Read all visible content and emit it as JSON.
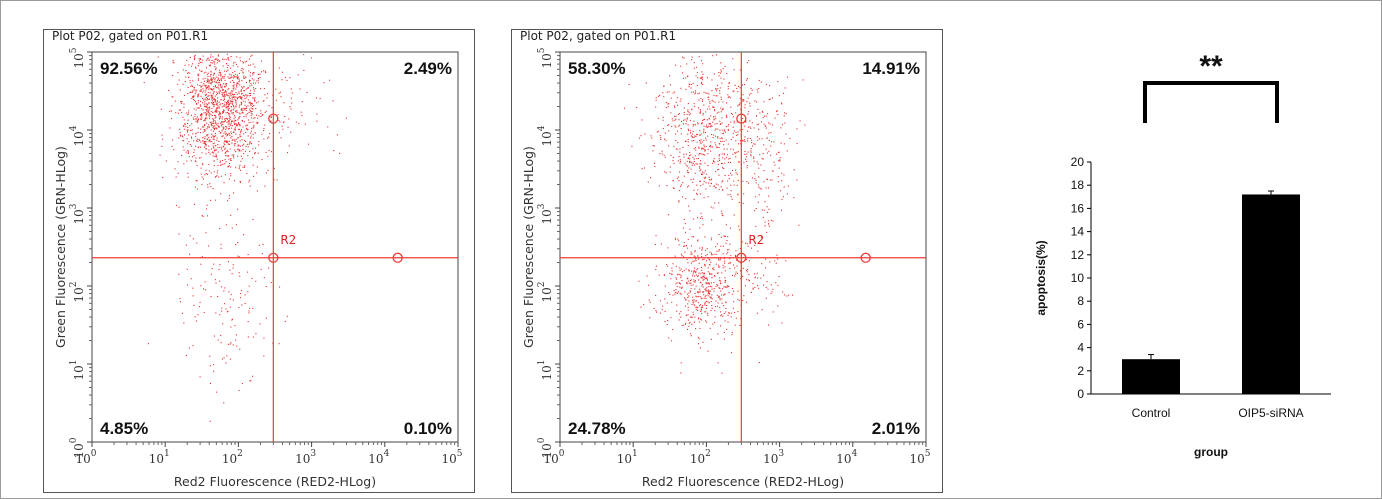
{
  "chart_data": [
    {
      "type": "scatter",
      "title": "Plot P02, gated on P01.R1",
      "xlabel": "Red2 Fluorescence (RED2-HLog)",
      "ylabel": "Green Fluorescence (GRN-HLog)",
      "xscale": "log",
      "yscale": "log",
      "xlim": [
        1,
        100000
      ],
      "ylim": [
        1,
        100000
      ],
      "gate_label": "R2",
      "gate_x": 300,
      "gate_y": 230,
      "quadrants": {
        "upper_left": "92.56%",
        "upper_right": "2.49%",
        "lower_left": "4.85%",
        "lower_right": "0.10%"
      },
      "point_color": "#e83030",
      "line_color": "#f03a3a"
    },
    {
      "type": "scatter",
      "title": "Plot P02, gated on P01.R1",
      "xlabel": "Red2 Fluorescence (RED2-HLog)",
      "ylabel": "Green Fluorescence (GRN-HLog)",
      "xscale": "log",
      "yscale": "log",
      "xlim": [
        1,
        100000
      ],
      "ylim": [
        1,
        100000
      ],
      "gate_label": "R2",
      "gate_x": 300,
      "gate_y": 230,
      "quadrants": {
        "upper_left": "58.30%",
        "upper_right": "14.91%",
        "lower_left": "24.78%",
        "lower_right": "2.01%"
      },
      "point_color": "#e83030",
      "line_color": "#f03a3a"
    },
    {
      "type": "bar",
      "categories": [
        "Control",
        "OIP5-siRNA"
      ],
      "values": [
        3.0,
        17.2
      ],
      "errors": [
        0.4,
        0.3
      ],
      "xlabel": "group",
      "ylabel": "apoptosis(%)",
      "ylim": [
        0,
        20
      ],
      "yticks": [
        0,
        2,
        4,
        6,
        8,
        10,
        12,
        14,
        16,
        18,
        20
      ],
      "significance": "**",
      "bar_color": "#000000"
    }
  ],
  "axis_ticks": {
    "x": [
      {
        "base": "10",
        "exp": "0"
      },
      {
        "base": "10",
        "exp": "1"
      },
      {
        "base": "10",
        "exp": "2"
      },
      {
        "base": "10",
        "exp": "3"
      },
      {
        "base": "10",
        "exp": "4"
      },
      {
        "base": "10",
        "exp": "5"
      }
    ],
    "y": [
      {
        "base": "10",
        "exp": "0"
      },
      {
        "base": "10",
        "exp": "1"
      },
      {
        "base": "10",
        "exp": "2"
      },
      {
        "base": "10",
        "exp": "3"
      },
      {
        "base": "10",
        "exp": "4"
      },
      {
        "base": "10",
        "exp": "5"
      }
    ]
  }
}
